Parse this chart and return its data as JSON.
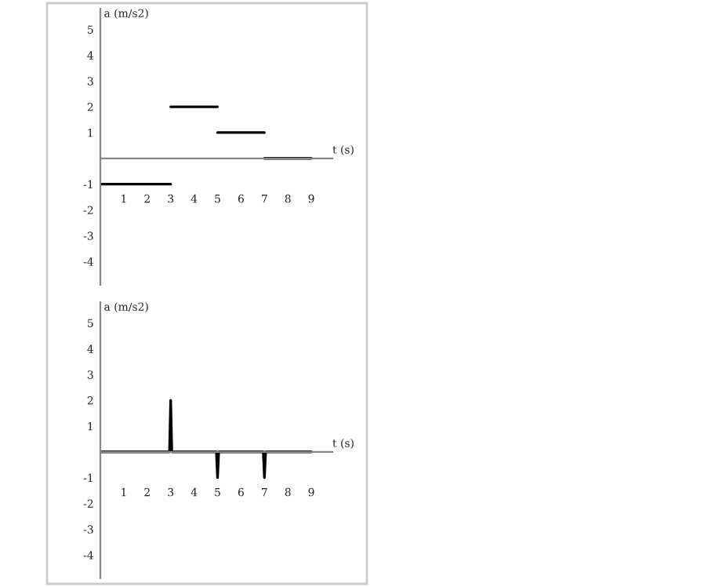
{
  "chart_data": [
    {
      "type": "line",
      "xlabel": "t (s)",
      "ylabel": "a (m/s2)",
      "xlim": [
        0,
        9.9
      ],
      "ylim": [
        -4.9,
        5.8
      ],
      "xticks": [
        1,
        2,
        3,
        4,
        5,
        6,
        7,
        8,
        9
      ],
      "yticks": [
        -4,
        -3,
        -2,
        -1,
        1,
        2,
        3,
        4,
        5
      ],
      "grid": false,
      "legend": false,
      "series": [
        {
          "color": "#000000",
          "x": [
            0,
            3
          ],
          "values": [
            -1,
            -1
          ]
        },
        {
          "color": "#000000",
          "x": [
            3,
            5
          ],
          "values": [
            2,
            2
          ]
        },
        {
          "color": "#000000",
          "x": [
            5,
            7
          ],
          "values": [
            1,
            1
          ]
        },
        {
          "color": "#000000",
          "x": [
            7,
            9
          ],
          "values": [
            0,
            0
          ]
        }
      ]
    },
    {
      "type": "line",
      "xlabel": "t (s)",
      "ylabel": "a (m/s2)",
      "xlim": [
        0,
        9.9
      ],
      "ylim": [
        -4.9,
        5.8
      ],
      "xticks": [
        1,
        2,
        3,
        4,
        5,
        6,
        7,
        8,
        9
      ],
      "yticks": [
        -4,
        -3,
        -2,
        -1,
        1,
        2,
        3,
        4,
        5
      ],
      "grid": false,
      "legend": false,
      "series": [
        {
          "color": "#000000",
          "x": [
            0,
            2.95,
            3,
            3.05,
            4.95,
            5,
            5.05,
            6.95,
            7,
            7.05,
            9
          ],
          "values": [
            0,
            0,
            2,
            0,
            0,
            -1,
            0,
            0,
            -1,
            0,
            0
          ]
        }
      ]
    }
  ]
}
